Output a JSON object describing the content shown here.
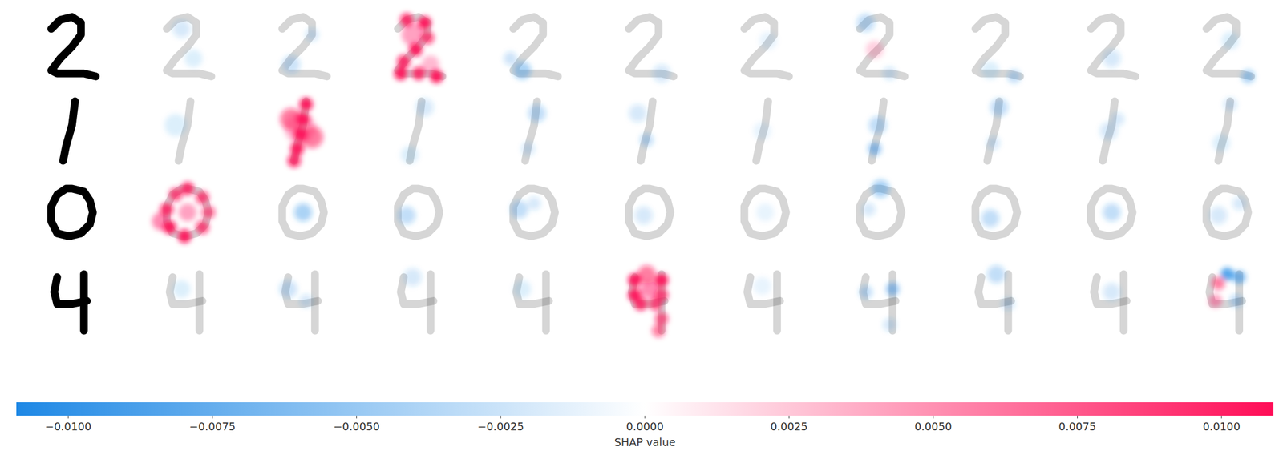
{
  "chart_data": {
    "type": "image_plot",
    "image_size": 28,
    "colorbar": {
      "label": "SHAP value",
      "range": [
        -0.0109,
        0.0109
      ],
      "ticks": [
        {
          "value": -0.01,
          "label": "−0.0100"
        },
        {
          "value": -0.0075,
          "label": "−0.0075"
        },
        {
          "value": -0.005,
          "label": "−0.0050"
        },
        {
          "value": -0.0025,
          "label": "−0.0025"
        },
        {
          "value": 0,
          "label": "0.0000"
        },
        {
          "value": 0.0025,
          "label": "0.0025"
        },
        {
          "value": 0.005,
          "label": "0.0050"
        },
        {
          "value": 0.0075,
          "label": "0.0075"
        },
        {
          "value": 0.01,
          "label": "0.0100"
        }
      ]
    },
    "rows": [
      {
        "strokes": [
          [
            [
              7,
              8
            ],
            [
              10,
              5
            ],
            [
              14,
              4
            ],
            [
              17,
              6
            ],
            [
              17,
              10
            ],
            [
              14,
              14
            ],
            [
              10,
              18
            ],
            [
              7,
              22
            ],
            [
              9,
              23
            ],
            [
              14,
              23
            ],
            [
              18,
              23
            ],
            [
              22,
              24
            ]
          ]
        ],
        "shap": [
          [
            [
              12,
              8,
              4,
              -0.002
            ],
            [
              16,
              18,
              4,
              -0.0015
            ]
          ],
          [
            [
              10,
              20,
              4,
              -0.0025
            ],
            [
              17,
              10,
              3,
              -0.002
            ]
          ],
          [
            [
              10,
              5,
              3,
              0.009
            ],
            [
              16,
              6,
              3,
              0.01
            ],
            [
              17,
              11,
              3,
              0.008
            ],
            [
              13,
              15,
              3,
              0.01
            ],
            [
              9,
              19,
              3,
              0.009
            ],
            [
              8,
              23,
              3,
              0.01
            ],
            [
              14,
              23,
              3,
              0.009
            ],
            [
              20,
              24,
              3,
              0.01
            ],
            [
              12,
              10,
              5,
              0.004
            ],
            [
              18,
              20,
              4,
              0.003
            ]
          ],
          [
            [
              10,
              22,
              4,
              -0.004
            ],
            [
              6,
              18,
              3,
              -0.0025
            ]
          ],
          [
            [
              18,
              23,
              4,
              -0.002
            ]
          ],
          [
            [
              15,
              12,
              4,
              -0.001
            ]
          ],
          [
            [
              9,
              6,
              4,
              -0.003
            ],
            [
              12,
              15,
              4,
              0.002
            ],
            [
              17,
              23,
              3,
              -0.002
            ]
          ],
          [
            [
              20,
              24,
              3,
              -0.003
            ],
            [
              12,
              22,
              4,
              -0.0015
            ]
          ],
          [
            [
              14,
              18,
              4,
              -0.002
            ]
          ],
          [
            [
              21,
              24,
              3,
              -0.004
            ],
            [
              15,
              12,
              4,
              -0.0015
            ]
          ]
        ]
      },
      {
        "strokes": [
          [
            [
              15,
              4
            ],
            [
              14,
              12
            ],
            [
              12,
              19
            ],
            [
              11,
              24
            ]
          ]
        ],
        "shap": [
          [
            [
              10,
              12,
              5,
              -0.0015
            ]
          ],
          [
            [
              15,
              5,
              3,
              0.01
            ],
            [
              14,
              10,
              3,
              0.01
            ],
            [
              13,
              15,
              3,
              0.01
            ],
            [
              12,
              20,
              3,
              0.01
            ],
            [
              11,
              24,
              3,
              0.009
            ],
            [
              10,
              10,
              5,
              0.006
            ],
            [
              17,
              16,
              5,
              0.006
            ],
            [
              13,
              13,
              7,
              0.003
            ]
          ],
          [
            [
              16,
              6,
              4,
              -0.002
            ],
            [
              11,
              22,
              4,
              -0.0015
            ]
          ],
          [
            [
              15,
              8,
              4,
              -0.003
            ],
            [
              12,
              20,
              3,
              -0.002
            ]
          ],
          [
            [
              10,
              8,
              4,
              -0.002
            ],
            [
              13,
              17,
              3,
              -0.003
            ]
          ],
          [
            [
              13,
              14,
              4,
              -0.001
            ]
          ],
          [
            [
              12,
              20,
              3,
              -0.005
            ],
            [
              13,
              12,
              4,
              -0.003
            ]
          ],
          [
            [
              15,
              6,
              4,
              -0.003
            ],
            [
              13,
              18,
              3,
              -0.002
            ]
          ],
          [
            [
              13,
              14,
              4,
              -0.002
            ],
            [
              16,
              10,
              3,
              -0.002
            ]
          ],
          [
            [
              15,
              5,
              3,
              -0.002
            ],
            [
              12,
              18,
              4,
              -0.0015
            ]
          ]
        ]
      },
      {
        "strokes": [
          [
            [
              14,
              5
            ],
            [
              18,
              6
            ],
            [
              20,
              9
            ],
            [
              21,
              13
            ],
            [
              20,
              17
            ],
            [
              17,
              20
            ],
            [
              13,
              21
            ],
            [
              9,
              20
            ],
            [
              7,
              16
            ],
            [
              7,
              11
            ],
            [
              9,
              7
            ],
            [
              12,
              5
            ],
            [
              14,
              5
            ]
          ]
        ],
        "shap": [
          [
            [
              14,
              5,
              3,
              0.009
            ],
            [
              19,
              8,
              3,
              0.008
            ],
            [
              21,
              13,
              3,
              0.007
            ],
            [
              19,
              18,
              3,
              0.008
            ],
            [
              13,
              21,
              3,
              0.01
            ],
            [
              8,
              18,
              3,
              0.01
            ],
            [
              7,
              12,
              3,
              0.009
            ],
            [
              10,
              7,
              3,
              0.008
            ],
            [
              14,
              13,
              4,
              0.004
            ],
            [
              5,
              16,
              4,
              0.005
            ]
          ],
          [
            [
              14,
              13,
              4,
              -0.004
            ]
          ],
          [
            [
              10,
              14,
              4,
              -0.003
            ]
          ],
          [
            [
              9,
              12,
              4,
              -0.003
            ],
            [
              14,
              10,
              3,
              -0.002
            ]
          ],
          [
            [
              12,
              14,
              4,
              -0.002
            ]
          ],
          [
            [
              14,
              13,
              4,
              -0.001
            ]
          ],
          [
            [
              14,
              5,
              4,
              -0.004
            ],
            [
              10,
              12,
              3,
              -0.002
            ]
          ],
          [
            [
              12,
              15,
              4,
              -0.003
            ]
          ],
          [
            [
              14,
              13,
              4,
              -0.003
            ]
          ],
          [
            [
              11,
              14,
              4,
              -0.002
            ],
            [
              18,
              10,
              3,
              -0.002
            ]
          ]
        ]
      },
      {
        "strokes": [
          [
            [
              9,
              6
            ],
            [
              8,
              11
            ],
            [
              9,
              15
            ],
            [
              14,
              15
            ],
            [
              19,
              14
            ]
          ],
          [
            [
              18,
              5
            ],
            [
              18,
              14
            ],
            [
              18,
              24
            ]
          ]
        ],
        "shap": [
          [
            [
              12,
              10,
              4,
              -0.0015
            ]
          ],
          [
            [
              9,
              10,
              4,
              -0.0025
            ],
            [
              15,
              14,
              3,
              -0.002
            ]
          ],
          [
            [
              12,
              6,
              4,
              -0.002
            ]
          ],
          [
            [
              10,
              10,
              4,
              -0.0015
            ]
          ],
          [
            [
              9,
              7,
              3,
              0.01
            ],
            [
              9,
              12,
              3,
              0.01
            ],
            [
              11,
              15,
              3,
              0.009
            ],
            [
              16,
              15,
              3,
              0.008
            ],
            [
              18,
              7,
              3,
              0.01
            ],
            [
              18,
              12,
              3,
              0.008
            ],
            [
              18,
              20,
              3,
              0.007
            ],
            [
              13,
              5,
              4,
              0.006
            ],
            [
              14,
              10,
              4,
              0.005
            ],
            [
              17,
              24,
              3,
              0.006
            ]
          ],
          [
            [
              13,
              9,
              4,
              -0.001
            ]
          ],
          [
            [
              18,
              10,
              3,
              -0.005
            ],
            [
              9,
              11,
              3,
              -0.003
            ],
            [
              17,
              22,
              3,
              -0.002
            ]
          ],
          [
            [
              14,
              5,
              4,
              -0.003
            ],
            [
              18,
              15,
              3,
              -0.002
            ]
          ],
          [
            [
              14,
              11,
              4,
              -0.002
            ]
          ],
          [
            [
              14,
              5,
              3,
              -0.008
            ],
            [
              18,
              6,
              3,
              -0.006
            ],
            [
              11,
              8,
              3,
              0.006
            ],
            [
              10,
              14,
              3,
              0.004
            ],
            [
              17,
              14,
              3,
              -0.003
            ]
          ]
        ]
      }
    ]
  }
}
